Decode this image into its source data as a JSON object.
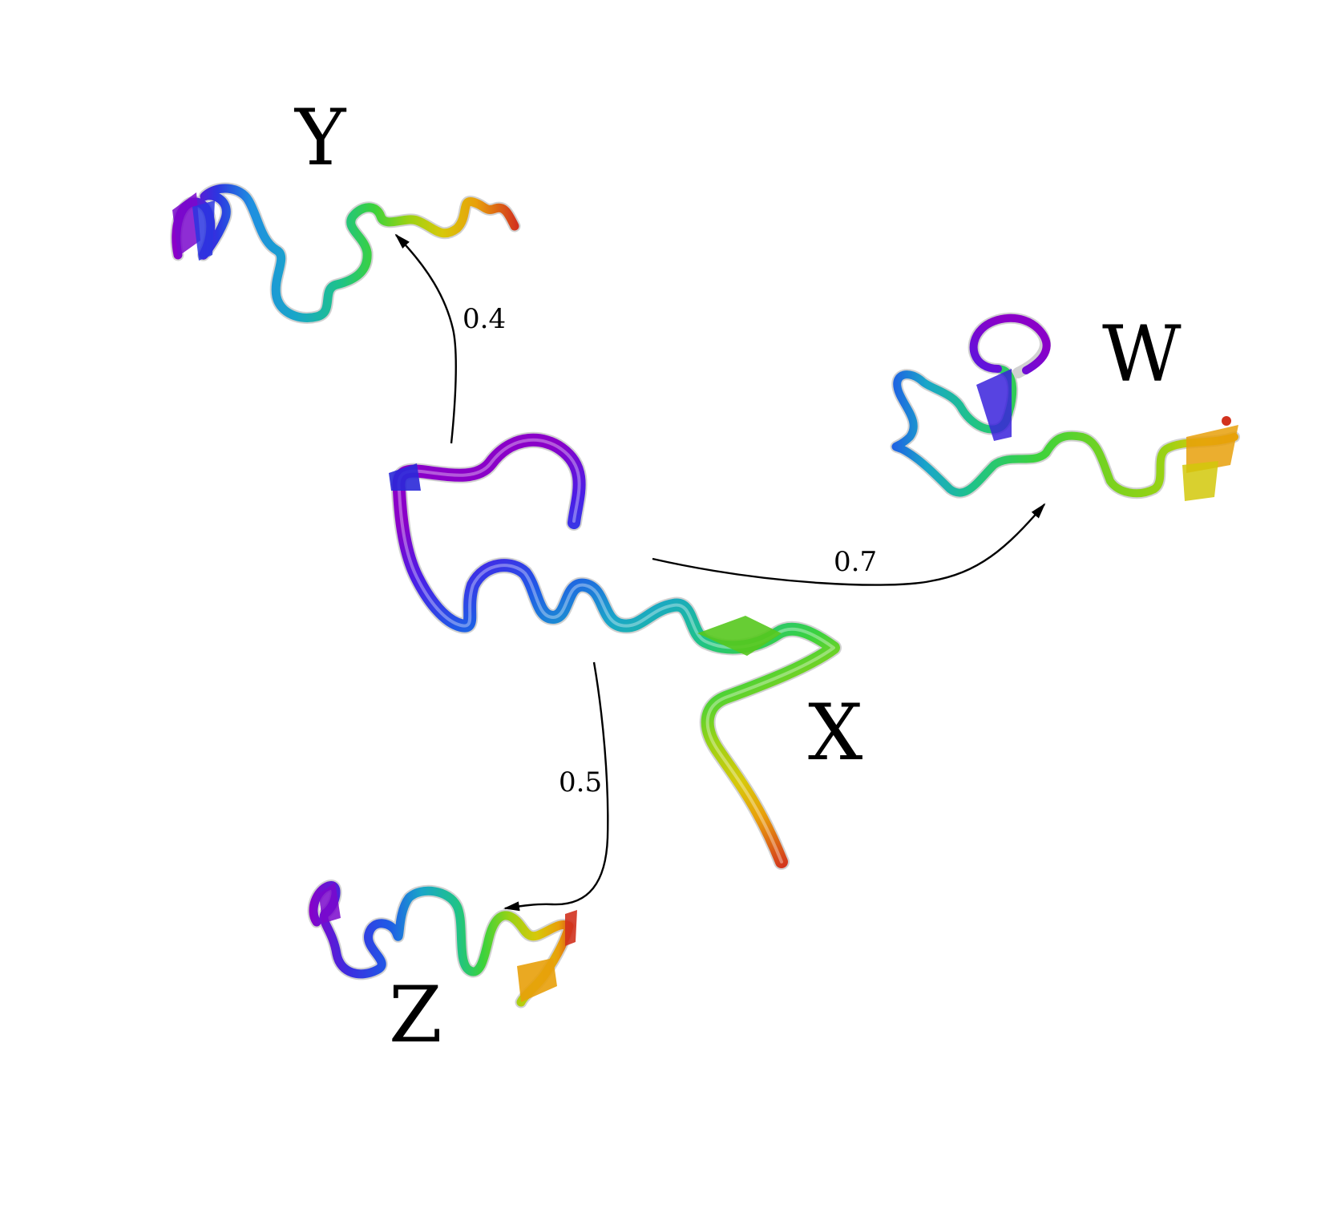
{
  "states": {
    "x": {
      "label": "X"
    },
    "y": {
      "label": "Y"
    },
    "z": {
      "label": "Z"
    },
    "w": {
      "label": "W"
    }
  },
  "transitions": {
    "x_to_y": {
      "probability": "0.4"
    },
    "x_to_w": {
      "probability": "0.7"
    },
    "x_to_z": {
      "probability": "0.5"
    }
  },
  "colors": {
    "ribbon_gradient": [
      "#8a00c8",
      "#3b2ee0",
      "#1f5be6",
      "#1aa6c8",
      "#1ec28a",
      "#3cd23c",
      "#9ad214",
      "#d7c80a",
      "#e8a00a",
      "#ea5a14",
      "#d2321e"
    ],
    "arrow": "#000000",
    "label": "#000000"
  }
}
